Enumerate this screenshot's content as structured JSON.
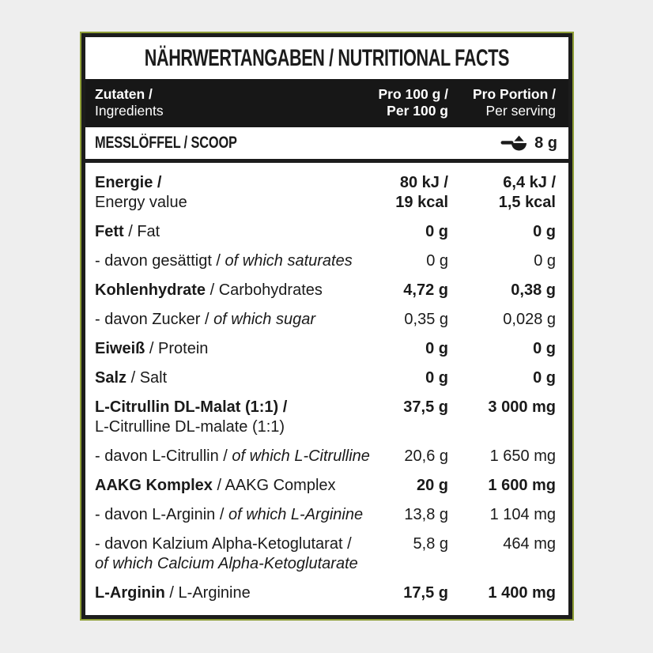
{
  "page": {
    "background": "#eeeeee"
  },
  "panel": {
    "background": "#ffffff",
    "border_color": "#1c1c1c",
    "outline_color": "#8e9e36"
  },
  "title": "NÄHRWERTANGABEN / NUTRITIONAL FACTS",
  "header": {
    "background": "#171717",
    "text_color": "#ffffff",
    "ingredients": {
      "line1": "Zutaten /",
      "line2": "Ingredients"
    },
    "per100": {
      "line1": "Pro 100 g /",
      "line2": "Per 100 g"
    },
    "serving": {
      "line1": "Pro Portion /",
      "line2": "Per serving"
    }
  },
  "scoop": {
    "label": "MESSLÖFFEL / SCOOP",
    "icon": "scoop-icon",
    "value": "8 g"
  },
  "rows": [
    {
      "de": "Energie /",
      "en": "Energy value",
      "two_line": true,
      "en_italic": false,
      "bold": true,
      "per100": [
        "80 kJ /",
        "19 kcal"
      ],
      "serving": [
        "6,4 kJ /",
        "1,5 kcal"
      ]
    },
    {
      "de": "Fett",
      "en": "Fat",
      "two_line": false,
      "en_italic": false,
      "bold": true,
      "per100": [
        "0 g"
      ],
      "serving": [
        "0 g"
      ]
    },
    {
      "de": "- davon gesättigt",
      "en": "of which saturates",
      "two_line": false,
      "en_italic": true,
      "bold": false,
      "per100": [
        "0 g"
      ],
      "serving": [
        "0 g"
      ]
    },
    {
      "de": "Kohlenhydrate",
      "en": "Carbohydrates",
      "two_line": false,
      "en_italic": false,
      "bold": true,
      "per100": [
        "4,72 g"
      ],
      "serving": [
        "0,38 g"
      ]
    },
    {
      "de": "- davon Zucker",
      "en": "of which sugar",
      "two_line": false,
      "en_italic": true,
      "bold": false,
      "per100": [
        "0,35 g"
      ],
      "serving": [
        "0,028 g"
      ]
    },
    {
      "de": "Eiweiß",
      "en": "Protein",
      "two_line": false,
      "en_italic": false,
      "bold": true,
      "per100": [
        "0 g"
      ],
      "serving": [
        "0 g"
      ]
    },
    {
      "de": "Salz",
      "en": "Salt",
      "two_line": false,
      "en_italic": false,
      "bold": true,
      "per100": [
        "0 g"
      ],
      "serving": [
        "0 g"
      ]
    },
    {
      "de": "L-Citrullin DL-Malat (1:1) /",
      "en": "L-Citrulline DL-malate (1:1)",
      "two_line": true,
      "en_italic": false,
      "bold": true,
      "per100": [
        "37,5 g"
      ],
      "serving": [
        "3 000 mg"
      ]
    },
    {
      "de": "- davon L-Citrullin",
      "en": "of which L-Citrulline",
      "two_line": false,
      "en_italic": true,
      "bold": false,
      "per100": [
        "20,6 g"
      ],
      "serving": [
        "1 650 mg"
      ]
    },
    {
      "de": "AAKG Komplex",
      "en": "AAKG Complex",
      "two_line": false,
      "en_italic": false,
      "bold": true,
      "per100": [
        "20 g"
      ],
      "serving": [
        "1 600 mg"
      ]
    },
    {
      "de": "- davon L-Arginin",
      "en": "of which L-Arginine",
      "two_line": false,
      "en_italic": true,
      "bold": false,
      "per100": [
        "13,8 g"
      ],
      "serving": [
        "1 104 mg"
      ]
    },
    {
      "de": "- davon Kalzium Alpha-Ketoglutarat /",
      "en": "of which Calcium Alpha-Ketoglutarate",
      "two_line": true,
      "en_italic": true,
      "bold": false,
      "per100": [
        "5,8 g"
      ],
      "serving": [
        "464 mg"
      ]
    },
    {
      "de": "L-Arginin",
      "en": "L-Arginine",
      "two_line": false,
      "en_italic": false,
      "bold": true,
      "per100": [
        "17,5 g"
      ],
      "serving": [
        "1 400 mg"
      ]
    }
  ]
}
